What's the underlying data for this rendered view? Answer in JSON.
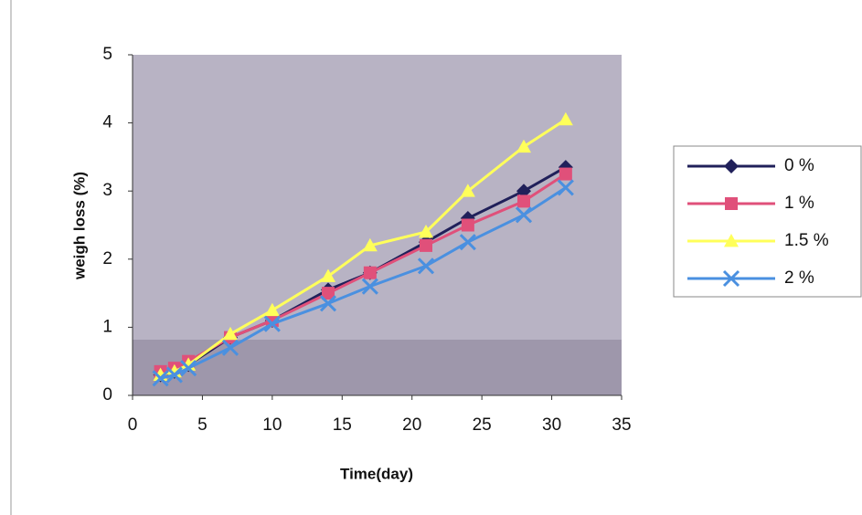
{
  "chart_data": {
    "type": "line",
    "x_label": "Time(day)",
    "y_label": "weigh loss (%)",
    "x": [
      2,
      3,
      4,
      7,
      10,
      14,
      17,
      21,
      24,
      28,
      31
    ],
    "series": [
      {
        "name": "0 %",
        "color": "#20205a",
        "marker": "diamond",
        "values": [
          0.3,
          0.35,
          0.45,
          0.85,
          1.1,
          1.55,
          1.8,
          2.25,
          2.6,
          3.0,
          3.35
        ]
      },
      {
        "name": "1 %",
        "color": "#e0507a",
        "marker": "square",
        "values": [
          0.35,
          0.4,
          0.5,
          0.85,
          1.1,
          1.5,
          1.8,
          2.2,
          2.5,
          2.85,
          3.25
        ]
      },
      {
        "name": "1.5 %",
        "color": "#ffff5a",
        "marker": "triangle",
        "values": [
          0.3,
          0.35,
          0.45,
          0.9,
          1.25,
          1.75,
          2.2,
          2.4,
          3.0,
          3.65,
          4.05
        ]
      },
      {
        "name": "2 %",
        "color": "#4a90e0",
        "marker": "cross",
        "values": [
          0.25,
          0.3,
          0.4,
          0.7,
          1.05,
          1.35,
          1.6,
          1.9,
          2.25,
          2.65,
          3.05
        ]
      }
    ],
    "xlim": [
      0,
      35
    ],
    "xticks": [
      0,
      5,
      10,
      15,
      20,
      25,
      30,
      35
    ],
    "ylim": [
      0,
      5
    ],
    "yticks": [
      0,
      1,
      2,
      3,
      4,
      5
    ],
    "legend": "right"
  }
}
